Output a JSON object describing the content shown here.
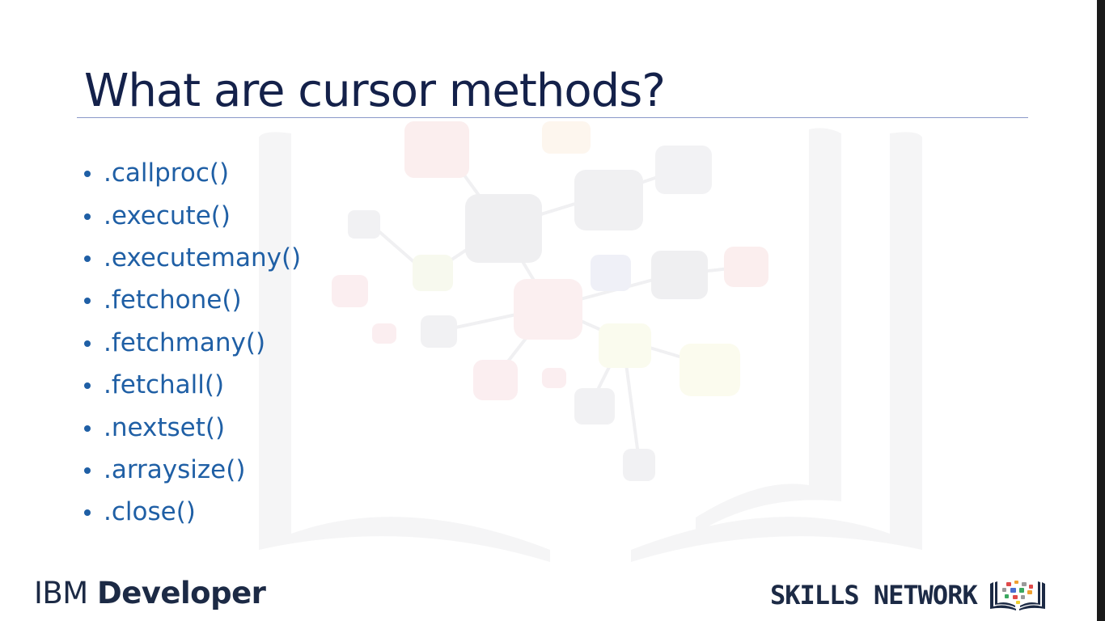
{
  "slide": {
    "title": "What are cursor methods?",
    "bullets": [
      ".callproc()",
      ".execute()",
      ".executemany()",
      ".fetchone()",
      ".fetchmany()",
      ".fetchall()",
      ".nextset()",
      ".arraysize()",
      ".close()"
    ]
  },
  "footer": {
    "brand_light": "IBM ",
    "brand_bold": "Developer",
    "network_label": "SKILLS NETWORK",
    "network_icon": "open-book-network-icon"
  },
  "colors": {
    "title": "#14214a",
    "bullet_text": "#1f5fa5",
    "rule": "#8a98c9",
    "logo_text": "#1c2a45"
  }
}
